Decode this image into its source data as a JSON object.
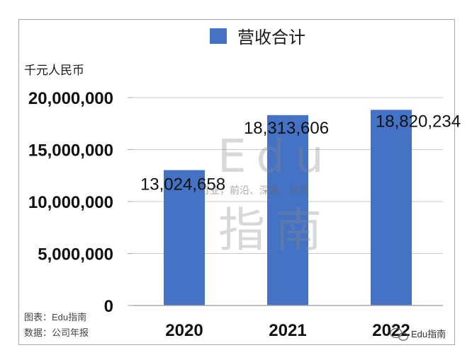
{
  "chart_data": {
    "type": "bar",
    "categories": [
      "2020",
      "2021",
      "2022"
    ],
    "series": [
      {
        "name": "营收合计",
        "values": [
          13024658,
          18313606,
          18820234
        ],
        "color": "#4472c4"
      }
    ],
    "data_labels": [
      "13,024,658",
      "18,313,606",
      "18,820,234"
    ],
    "y_ticks": [
      "0",
      "5,000,000",
      "10,000,000",
      "15,000,000",
      "20,000,000"
    ],
    "y_tick_values": [
      0,
      5000000,
      10000000,
      15000000,
      20000000
    ],
    "ylim": [
      0,
      20000000
    ],
    "ylabel": "千元人民币",
    "legend_position": "top",
    "grid": true
  },
  "footnotes": {
    "chart_source": "图表：Edu指南",
    "data_source": "数据：公司年报"
  },
  "watermark": {
    "latin": "Edu",
    "chinese": "指南",
    "tagline": "行业，前沿、深度、独家",
    "account": "Edu指南",
    "icon": "wechat-icon"
  }
}
